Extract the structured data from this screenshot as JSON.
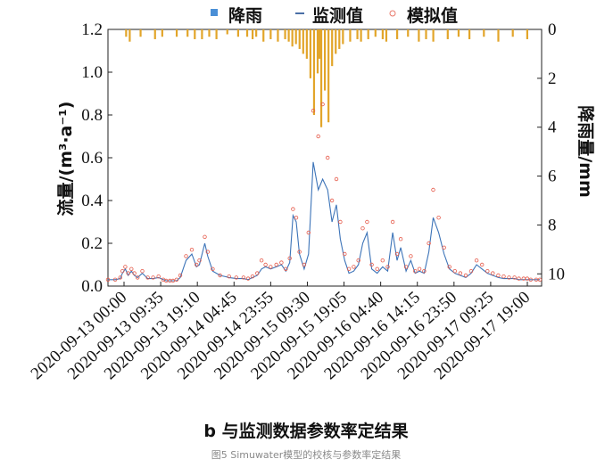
{
  "chart_data": {
    "type": "line",
    "legend": {
      "placement": "top",
      "items": [
        {
          "name": "降雨",
          "color": "#4a8fd6",
          "marker": "bar"
        },
        {
          "name": "监测值",
          "color": "#4a6fa6",
          "marker": "line"
        },
        {
          "name": "模拟值",
          "color": "#e8796b",
          "marker": "circle"
        }
      ]
    },
    "ylabel_left": "流量/(m³·a⁻¹)",
    "ylabel_right": "降雨量/mm",
    "ylim_left": [
      0,
      1.2
    ],
    "ylim_right": [
      0,
      10.5
    ],
    "yticks_left": [
      "0.0",
      "0.2",
      "0.4",
      "0.6",
      "0.8",
      "1.0",
      "1.2"
    ],
    "yticks_right": [
      "0",
      "2",
      "4",
      "6",
      "8",
      "10"
    ],
    "xticks": [
      "2020-09-13 00:00",
      "2020-09-13 09:35",
      "2020-09-13 19:10",
      "2020-09-14 04:45",
      "2020-09-14 23:55",
      "2020-09-15 09:30",
      "2020-09-15 19:05",
      "2020-09-16 04:40",
      "2020-09-16 14:15",
      "2020-09-16 23:50",
      "2020-09-17 09:25",
      "2020-09-17 19:00"
    ],
    "grid": false,
    "series": [
      {
        "name": "监测值",
        "x": [
          0,
          2,
          3.4,
          4,
          4.8,
          5.6,
          6.5,
          7.3,
          8.2,
          9.5,
          11,
          12.5,
          14,
          15.3,
          16.1,
          17.1,
          18,
          19,
          20,
          21.6,
          23.2,
          24.5,
          25.3,
          26.8,
          27.6,
          29,
          31,
          33.5,
          35.5,
          37.5,
          38.8,
          40,
          41.3,
          42.5,
          43.6,
          45,
          46.6,
          48,
          49.2,
          50.3,
          51.2,
          52.1,
          53,
          54.3,
          55.5,
          56.8,
          58.2,
          59.4,
          60.8,
          62,
          63.2,
          64.3,
          65.5,
          66.7,
          68,
          69.3,
          70.5,
          71.7,
          73,
          74.5,
          76,
          77.4,
          78.8,
          80,
          81,
          82.5,
          83.8,
          85,
          86.2,
          87.5,
          88.8,
          90,
          91.5,
          93,
          94.5,
          96,
          97.5,
          99,
          100.5,
          102,
          103.5,
          105,
          106.5,
          108,
          109.5,
          111,
          112.5,
          113.7,
          115,
          116,
          117,
          118.5,
          119.5
        ],
        "values": [
          0.03,
          0.03,
          0.035,
          0.06,
          0.08,
          0.05,
          0.07,
          0.05,
          0.04,
          0.06,
          0.035,
          0.035,
          0.04,
          0.03,
          0.025,
          0.025,
          0.025,
          0.025,
          0.04,
          0.12,
          0.15,
          0.09,
          0.1,
          0.2,
          0.14,
          0.07,
          0.05,
          0.04,
          0.035,
          0.035,
          0.03,
          0.04,
          0.05,
          0.08,
          0.09,
          0.08,
          0.09,
          0.1,
          0.07,
          0.11,
          0.33,
          0.3,
          0.15,
          0.08,
          0.15,
          0.58,
          0.45,
          0.5,
          0.45,
          0.3,
          0.38,
          0.22,
          0.12,
          0.06,
          0.07,
          0.1,
          0.2,
          0.25,
          0.08,
          0.06,
          0.09,
          0.07,
          0.25,
          0.12,
          0.18,
          0.07,
          0.12,
          0.06,
          0.07,
          0.06,
          0.16,
          0.32,
          0.25,
          0.15,
          0.08,
          0.06,
          0.05,
          0.04,
          0.06,
          0.1,
          0.08,
          0.06,
          0.05,
          0.04,
          0.035,
          0.035,
          0.035,
          0.03,
          0.03,
          0.03,
          0.03,
          0.03,
          0.03
        ]
      },
      {
        "name": "模拟值",
        "x": [
          0,
          2,
          3.4,
          4,
          4.8,
          5.6,
          6.5,
          7.3,
          8.2,
          9.5,
          11,
          12.5,
          14,
          15.3,
          16.1,
          17.1,
          18,
          19,
          20,
          21.6,
          23.2,
          24.5,
          25.3,
          26.8,
          27.6,
          29,
          31,
          33.5,
          35.5,
          37.5,
          38.8,
          40,
          41.3,
          42.5,
          43.6,
          45,
          46.6,
          48,
          49.2,
          50.3,
          51.2,
          52.1,
          53,
          54.3,
          55.5,
          56.8,
          58.2,
          59.4,
          60.8,
          62,
          63.2,
          64.3,
          65.5,
          66.7,
          68,
          69.3,
          70.5,
          71.7,
          73,
          74.5,
          76,
          77.4,
          78.8,
          80,
          81,
          82.5,
          83.8,
          85,
          86.2,
          87.5,
          88.8,
          90,
          91.5,
          93,
          94.5,
          96,
          97.5,
          99,
          100.5,
          102,
          103.5,
          105,
          106.5,
          108,
          109.5,
          111,
          112.5,
          113.7,
          115,
          116,
          117,
          118.5,
          119.5
        ],
        "values": [
          0.03,
          0.03,
          0.04,
          0.07,
          0.09,
          0.06,
          0.08,
          0.06,
          0.04,
          0.07,
          0.04,
          0.04,
          0.045,
          0.03,
          0.025,
          0.025,
          0.025,
          0.03,
          0.05,
          0.14,
          0.17,
          0.1,
          0.12,
          0.23,
          0.16,
          0.08,
          0.05,
          0.045,
          0.04,
          0.04,
          0.035,
          0.045,
          0.06,
          0.12,
          0.1,
          0.09,
          0.1,
          0.11,
          0.08,
          0.13,
          0.36,
          0.32,
          0.16,
          0.1,
          0.25,
          0.82,
          0.7,
          0.85,
          0.6,
          0.4,
          0.5,
          0.3,
          0.15,
          0.08,
          0.09,
          0.12,
          0.27,
          0.3,
          0.1,
          0.08,
          0.12,
          0.09,
          0.3,
          0.15,
          0.22,
          0.09,
          0.14,
          0.07,
          0.08,
          0.07,
          0.2,
          0.45,
          0.32,
          0.18,
          0.09,
          0.07,
          0.06,
          0.05,
          0.07,
          0.12,
          0.1,
          0.07,
          0.06,
          0.05,
          0.045,
          0.04,
          0.04,
          0.035,
          0.035,
          0.035,
          0.03,
          0.03,
          0.03
        ]
      },
      {
        "name": "降雨",
        "axis": "right",
        "x": [
          5,
          6,
          9,
          13,
          15,
          19,
          22,
          24,
          26,
          28,
          30,
          33,
          36,
          38.5,
          40,
          41,
          43,
          45,
          47,
          49,
          50,
          51,
          52,
          53,
          54,
          55,
          56,
          57,
          58,
          58.5,
          59,
          60,
          61,
          62,
          63,
          64,
          65,
          67,
          69,
          70,
          72,
          74,
          76,
          77,
          80,
          83,
          86,
          88,
          90,
          94,
          97,
          100,
          104,
          108,
          112,
          116
        ],
        "values": [
          0.3,
          0.5,
          0.3,
          0.4,
          0.3,
          0.3,
          0.3,
          0.4,
          0.4,
          0.3,
          0.4,
          0.2,
          0.3,
          0.3,
          0.4,
          0.3,
          0.5,
          0.4,
          0.5,
          0.4,
          0.5,
          0.7,
          0.6,
          0.8,
          1.0,
          1.2,
          2.0,
          3.5,
          1.8,
          1.2,
          4.0,
          2.5,
          3.8,
          1.5,
          1.0,
          0.8,
          0.6,
          0.5,
          0.4,
          0.5,
          0.4,
          0.3,
          0.4,
          0.5,
          0.4,
          0.3,
          0.5,
          0.4,
          0.5,
          0.4,
          0.3,
          0.4,
          0.3,
          0.5,
          0.3,
          0.4
        ]
      }
    ]
  },
  "subtitle": "b  与监测数据参数率定结果",
  "caption": "图5 Simuwater模型的校核与参数率定结果"
}
